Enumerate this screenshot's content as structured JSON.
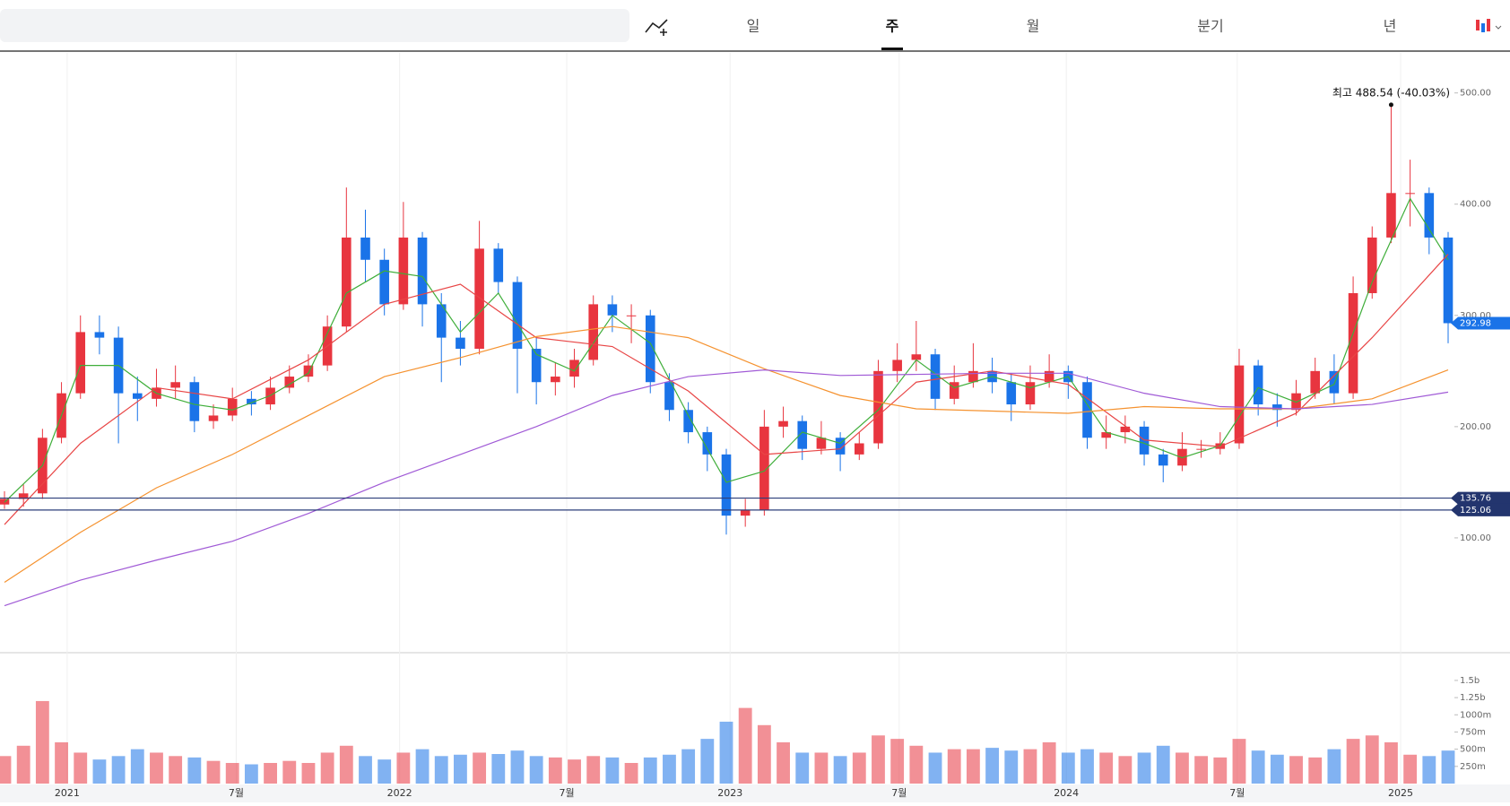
{
  "toolbar": {
    "tabs": [
      "일",
      "주",
      "월",
      "분기",
      "년"
    ],
    "selected": 1
  },
  "chart_data": {
    "type": "candlestick",
    "xticks": [
      {
        "value": 3.3,
        "label": "2021"
      },
      {
        "value": 12.2,
        "label": "7월"
      },
      {
        "value": 20.8,
        "label": "2022"
      },
      {
        "value": 29.6,
        "label": "7월"
      },
      {
        "value": 38.2,
        "label": "2023"
      },
      {
        "value": 47.1,
        "label": "7월"
      },
      {
        "value": 55.9,
        "label": "2024"
      },
      {
        "value": 64.9,
        "label": "7월"
      },
      {
        "value": 73.5,
        "label": "2025"
      }
    ],
    "ylim": [
      0,
      536
    ],
    "yticks": [
      {
        "value": 100,
        "label": "100.00"
      },
      {
        "value": 200,
        "label": "200.00"
      },
      {
        "value": 300,
        "label": "300.00"
      },
      {
        "value": 400,
        "label": "400.00"
      },
      {
        "value": 500,
        "label": "500.00"
      }
    ],
    "up_color": "#e8353f",
    "down_color": "#1a73e8",
    "candles": {
      "open": [
        130,
        135,
        140,
        190,
        230,
        285,
        280,
        230,
        225,
        235,
        240,
        205,
        210,
        225,
        220,
        235,
        245,
        255,
        290,
        370,
        350,
        310,
        370,
        310,
        280,
        270,
        360,
        330,
        270,
        240,
        245,
        260,
        310,
        300,
        300,
        240,
        215,
        195,
        175,
        120,
        125,
        200,
        205,
        180,
        190,
        175,
        185,
        250,
        260,
        265,
        225,
        240,
        250,
        240,
        220,
        240,
        250,
        240,
        190,
        195,
        200,
        175,
        165,
        180,
        180,
        185,
        255,
        220,
        215,
        230,
        250,
        230,
        320,
        370,
        410,
        410,
        370
      ],
      "high": [
        142,
        148,
        198,
        240,
        300,
        300,
        290,
        245,
        252,
        255,
        245,
        220,
        235,
        232,
        245,
        255,
        265,
        300,
        415,
        395,
        360,
        402,
        375,
        320,
        295,
        385,
        365,
        335,
        280,
        258,
        270,
        318,
        318,
        310,
        305,
        248,
        222,
        200,
        180,
        135,
        215,
        218,
        210,
        205,
        195,
        195,
        260,
        275,
        295,
        270,
        255,
        275,
        262,
        248,
        255,
        265,
        255,
        245,
        210,
        210,
        205,
        180,
        195,
        188,
        195,
        270,
        260,
        230,
        242,
        262,
        265,
        335,
        380,
        488.54,
        440,
        415,
        375
      ],
      "low": [
        126,
        128,
        135,
        185,
        225,
        265,
        185,
        205,
        218,
        225,
        195,
        198,
        205,
        210,
        215,
        230,
        240,
        250,
        285,
        330,
        300,
        305,
        290,
        240,
        255,
        265,
        320,
        230,
        220,
        228,
        235,
        255,
        285,
        275,
        230,
        205,
        185,
        160,
        103,
        110,
        120,
        190,
        170,
        175,
        160,
        170,
        180,
        240,
        250,
        215,
        220,
        235,
        230,
        205,
        215,
        235,
        225,
        180,
        180,
        185,
        165,
        150,
        160,
        172,
        175,
        180,
        210,
        200,
        210,
        225,
        220,
        225,
        315,
        365,
        380,
        355,
        275
      ],
      "close": [
        135,
        140,
        190,
        230,
        285,
        280,
        230,
        225,
        235,
        240,
        205,
        210,
        225,
        220,
        235,
        245,
        255,
        290,
        370,
        350,
        310,
        370,
        310,
        280,
        270,
        360,
        330,
        270,
        240,
        245,
        260,
        310,
        300,
        300,
        240,
        215,
        195,
        175,
        120,
        125,
        200,
        205,
        180,
        190,
        175,
        185,
        250,
        260,
        265,
        225,
        240,
        250,
        240,
        220,
        240,
        250,
        240,
        190,
        195,
        200,
        175,
        165,
        180,
        180,
        185,
        255,
        220,
        215,
        230,
        250,
        230,
        320,
        370,
        410,
        410,
        370,
        293
      ]
    },
    "lines": [
      {
        "color": "#3fae3a",
        "x": [
          0,
          2,
          4,
          6,
          8,
          10,
          12,
          14,
          16,
          18,
          20,
          22,
          24,
          26,
          28,
          30,
          32,
          34,
          36,
          38,
          40,
          42,
          44,
          46,
          48,
          50,
          52,
          54,
          56,
          58,
          60,
          62,
          64,
          66,
          68,
          70,
          72,
          74,
          76
        ],
        "values": [
          132,
          165,
          255,
          255,
          230,
          220,
          215,
          228,
          248,
          320,
          340,
          335,
          285,
          320,
          265,
          250,
          300,
          275,
          210,
          150,
          160,
          195,
          185,
          215,
          260,
          235,
          245,
          235,
          245,
          195,
          185,
          172,
          183,
          235,
          222,
          238,
          330,
          405,
          350
        ]
      },
      {
        "color": "#e84545",
        "x": [
          0,
          4,
          8,
          12,
          16,
          20,
          24,
          28,
          32,
          36,
          40,
          44,
          48,
          52,
          56,
          60,
          64,
          68,
          72,
          76
        ],
        "values": [
          112,
          185,
          235,
          225,
          260,
          310,
          328,
          280,
          272,
          232,
          175,
          180,
          240,
          250,
          238,
          188,
          182,
          212,
          280,
          355
        ]
      },
      {
        "color": "#f5922f",
        "x": [
          0,
          4,
          8,
          12,
          16,
          20,
          24,
          28,
          32,
          36,
          40,
          44,
          48,
          52,
          56,
          60,
          64,
          68,
          72,
          76
        ],
        "values": [
          60,
          105,
          145,
          175,
          210,
          245,
          262,
          281,
          290,
          280,
          252,
          228,
          216,
          214,
          212,
          218,
          216,
          216,
          225,
          251
        ]
      },
      {
        "color": "#a05ad6",
        "x": [
          0,
          4,
          8,
          12,
          16,
          20,
          24,
          28,
          32,
          36,
          40,
          44,
          48,
          52,
          56,
          60,
          64,
          68,
          72,
          76
        ],
        "values": [
          39,
          62,
          80,
          97,
          122,
          150,
          175,
          200,
          228,
          245,
          251,
          246,
          247,
          248,
          248,
          230,
          218,
          216,
          220,
          231
        ]
      }
    ],
    "levels": [
      135.76,
      125.06
    ],
    "last_price": 292.98,
    "annotation": {
      "text": "최고 488.54 (-40.03%)",
      "x": 73,
      "y": 488.54
    },
    "volume": {
      "ylim": [
        0,
        1890
      ],
      "yticks": [
        {
          "value": 250,
          "label": "250m"
        },
        {
          "value": 500,
          "label": "500m"
        },
        {
          "value": 750,
          "label": "750m"
        },
        {
          "value": 1000,
          "label": "1000m"
        },
        {
          "value": 1250,
          "label": "1.25b"
        },
        {
          "value": 1500,
          "label": "1.5b"
        }
      ],
      "values": [
        400,
        550,
        1200,
        600,
        450,
        350,
        400,
        500,
        450,
        400,
        380,
        330,
        300,
        280,
        300,
        330,
        300,
        450,
        550,
        400,
        350,
        450,
        500,
        400,
        420,
        450,
        430,
        480,
        400,
        380,
        350,
        400,
        380,
        300,
        380,
        420,
        500,
        650,
        900,
        1100,
        850,
        600,
        450,
        450,
        400,
        450,
        700,
        650,
        550,
        450,
        500,
        500,
        520,
        480,
        500,
        600,
        450,
        500,
        450,
        400,
        450,
        550,
        450,
        400,
        380,
        650,
        480,
        420,
        400,
        380,
        500,
        650,
        700,
        600,
        420,
        400,
        480
      ]
    }
  }
}
